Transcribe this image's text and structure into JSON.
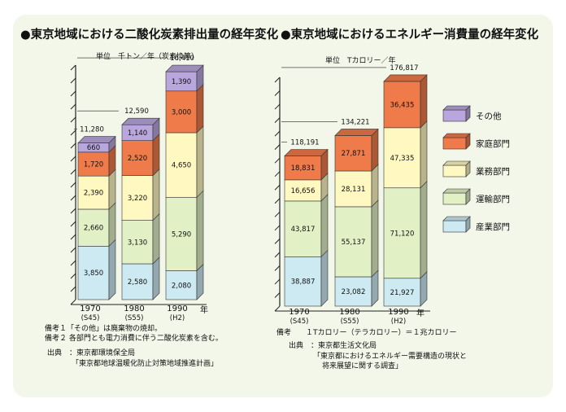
{
  "colors": {
    "other": "#b9a6dc",
    "household": "#ef7a4a",
    "business": "#fff8c0",
    "transport": "#e1f0c5",
    "industry": "#cdeaf3"
  },
  "legend": {
    "other": "その他",
    "household": "家庭部門",
    "business": "業務部門",
    "transport": "運輸部門",
    "industry": "産業部門"
  },
  "chart_data": [
    {
      "type": "bar",
      "stacked": true,
      "title": "●東京地域における二酸化炭素排出量の経年変化",
      "unit_label": "単位　千トン／年（炭素換算）",
      "categories": [
        "1970",
        "1980",
        "1990"
      ],
      "category_sub": [
        "(S45)",
        "(S55)",
        "(H2)"
      ],
      "year_unit": "年",
      "totals": [
        "11,280",
        "12,590",
        "16,410"
      ],
      "total_values": [
        11280,
        12590,
        16410
      ],
      "ylim": [
        0,
        17000
      ],
      "grid": true,
      "series": [
        {
          "key": "industry",
          "values": [
            3850,
            2580,
            2080
          ],
          "labels": [
            "3,850",
            "2,580",
            "2,080"
          ]
        },
        {
          "key": "transport",
          "values": [
            2660,
            3130,
            5290
          ],
          "labels": [
            "2,660",
            "3,130",
            "5,290"
          ]
        },
        {
          "key": "business",
          "values": [
            2390,
            3220,
            4650
          ],
          "labels": [
            "2,390",
            "3,220",
            "4,650"
          ]
        },
        {
          "key": "household",
          "values": [
            1720,
            2520,
            3000
          ],
          "labels": [
            "1,720",
            "2,520",
            "3,000"
          ]
        },
        {
          "key": "other",
          "values": [
            660,
            1140,
            1390
          ],
          "labels": [
            "660",
            "1,140",
            "1,390"
          ]
        }
      ],
      "notes": [
        "備考１「その他」は廃棄物の焼却。",
        "備考２ 各部門とも電力消費に伴う二酸化炭素を含む。"
      ],
      "source": {
        "label": "出典",
        "org": "：東京都環境保全局",
        "doc": "「東京都地球温暖化防止対策地域推進計画」"
      }
    },
    {
      "type": "bar",
      "stacked": true,
      "title": "●東京地域におけるエネルギー消費量の経年変化",
      "unit_label": "単位　Tカロリー／年",
      "categories": [
        "1970",
        "1980",
        "1990"
      ],
      "category_sub": [
        "(S45)",
        "(S55)",
        "(H2)"
      ],
      "year_unit": "年",
      "totals": [
        "118,191",
        "134,221",
        "176,817"
      ],
      "total_values": [
        118191,
        134221,
        176817
      ],
      "ylim": [
        0,
        180000
      ],
      "grid": true,
      "series": [
        {
          "key": "industry",
          "values": [
            38887,
            23082,
            21927
          ],
          "labels": [
            "38,887",
            "23,082",
            "21,927"
          ]
        },
        {
          "key": "transport",
          "values": [
            43817,
            55137,
            71120
          ],
          "labels": [
            "43,817",
            "55,137",
            "71,120"
          ]
        },
        {
          "key": "business",
          "values": [
            16656,
            28131,
            47335
          ],
          "labels": [
            "16,656",
            "28,131",
            "47,335"
          ]
        },
        {
          "key": "household",
          "values": [
            18831,
            27871,
            36435
          ],
          "labels": [
            "18,831",
            "27,871",
            "36,435"
          ]
        }
      ],
      "notes": [
        "備考　　１Tカロリー（テラカロリー）＝１兆カロリー"
      ],
      "source": {
        "label": "出典",
        "org": "：東京都生活文化局",
        "doc": "「東京都におけるエネルギー需要構造の現状と",
        "doc2": "将来展望に関する調査」"
      }
    }
  ]
}
